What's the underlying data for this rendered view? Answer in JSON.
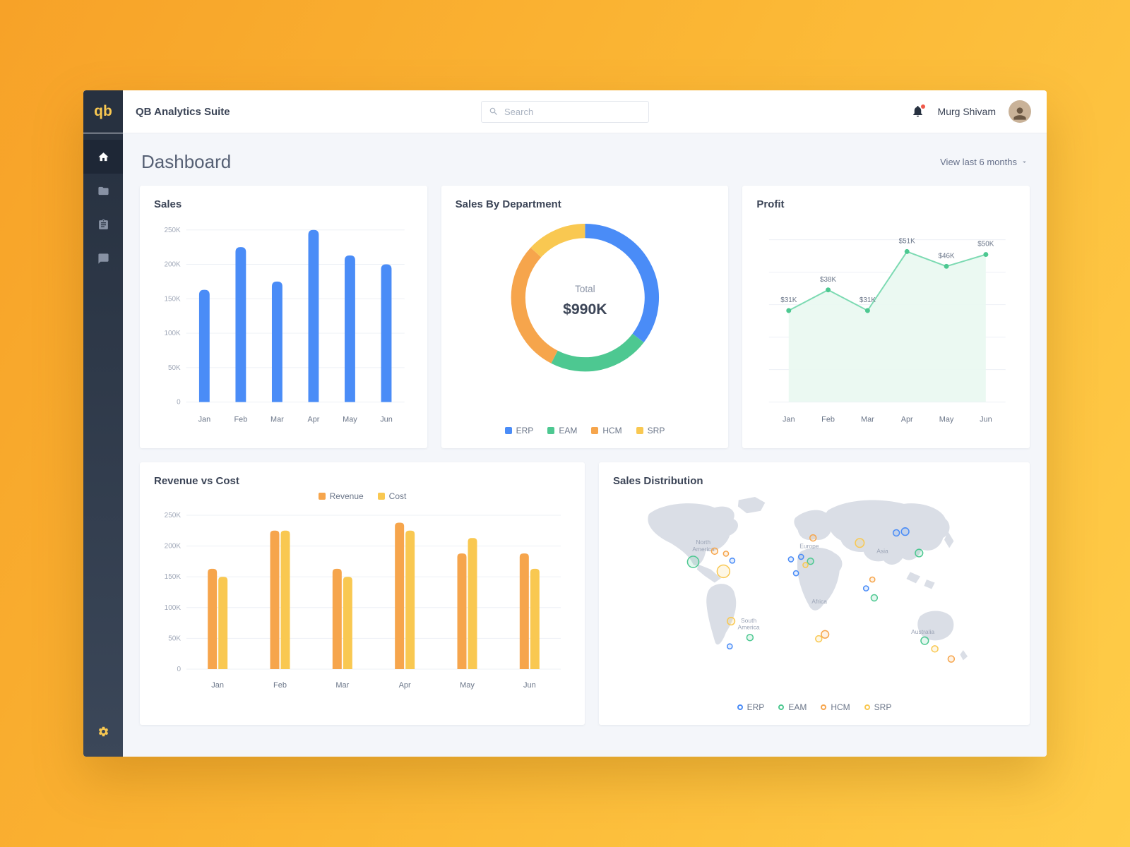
{
  "app": {
    "logo_text": "qb",
    "title": "QB Analytics Suite",
    "search_placeholder": "Search",
    "user_name": "Murg Shivam"
  },
  "page": {
    "title": "Dashboard",
    "range_filter": "View last 6 months"
  },
  "colors": {
    "blue": "#4A8CF7",
    "green": "#4DC891",
    "orange": "#F6A54C",
    "yellow": "#F9C851",
    "grid": "#EDF0F6"
  },
  "chart_data": [
    {
      "id": "sales",
      "type": "bar",
      "title": "Sales",
      "categories": [
        "Jan",
        "Feb",
        "Mar",
        "Apr",
        "May",
        "Jun"
      ],
      "values": [
        163000,
        225000,
        175000,
        250000,
        213000,
        200000
      ],
      "ylim": [
        0,
        250000
      ],
      "yticks": [
        "0",
        "50K",
        "100K",
        "150K",
        "200K",
        "250K"
      ],
      "bar_color": "#4A8CF7"
    },
    {
      "id": "sales-by-department",
      "type": "pie",
      "title": "Sales By Department",
      "center_label": "Total",
      "center_value": "$990K",
      "unit": "$K",
      "slices": [
        {
          "name": "ERP",
          "value": 350,
          "color": "#4A8CF7"
        },
        {
          "name": "EAM",
          "value": 220,
          "color": "#4DC891"
        },
        {
          "name": "HCM",
          "value": 290,
          "color": "#F6A54C"
        },
        {
          "name": "SRP",
          "value": 130,
          "color": "#F9C851"
        }
      ]
    },
    {
      "id": "profit",
      "type": "line",
      "title": "Profit",
      "categories": [
        "Jan",
        "Feb",
        "Mar",
        "Apr",
        "May",
        "Jun"
      ],
      "values": [
        31000,
        38000,
        31000,
        51000,
        46000,
        50000
      ],
      "point_labels": [
        "$31K",
        "$38K",
        "$31K",
        "$51K",
        "$46K",
        "$50K"
      ],
      "ylim": [
        0,
        55000
      ],
      "line_color": "#7CDAB2",
      "area_color": "#E9F8F1",
      "point_color": "#4DC891"
    },
    {
      "id": "revenue-vs-cost",
      "type": "bar",
      "title": "Revenue vs Cost",
      "categories": [
        "Jan",
        "Feb",
        "Mar",
        "Apr",
        "May",
        "Jun"
      ],
      "series": [
        {
          "name": "Revenue",
          "color": "#F6A54C",
          "values": [
            163000,
            225000,
            163000,
            238000,
            188000,
            188000
          ]
        },
        {
          "name": "Cost",
          "color": "#F9C851",
          "values": [
            150000,
            225000,
            150000,
            225000,
            213000,
            163000
          ]
        }
      ],
      "ylim": [
        0,
        250000
      ],
      "yticks": [
        "0",
        "50K",
        "100K",
        "150K",
        "200K",
        "250K"
      ]
    },
    {
      "id": "sales-distribution",
      "type": "map",
      "title": "Sales Distribution",
      "legend": [
        {
          "name": "ERP",
          "color": "#4A8CF7"
        },
        {
          "name": "EAM",
          "color": "#4DC891"
        },
        {
          "name": "HCM",
          "color": "#F6A54C"
        },
        {
          "name": "SRP",
          "color": "#F9C851"
        }
      ],
      "region_labels": [
        {
          "lines": [
            "North",
            "America"
          ],
          "x": 104,
          "y": 84
        },
        {
          "lines": [
            "South",
            "America"
          ],
          "x": 176,
          "y": 208
        },
        {
          "lines": [
            "Europe"
          ],
          "x": 272,
          "y": 90
        },
        {
          "lines": [
            "Africa"
          ],
          "x": 288,
          "y": 178
        },
        {
          "lines": [
            "Asia"
          ],
          "x": 388,
          "y": 98
        },
        {
          "lines": [
            "Australia"
          ],
          "x": 452,
          "y": 226
        }
      ],
      "markers": [
        {
          "x": 88,
          "y": 112,
          "r": 9,
          "c": "green"
        },
        {
          "x": 122,
          "y": 95,
          "r": 5,
          "c": "orange"
        },
        {
          "x": 140,
          "y": 99,
          "r": 4,
          "c": "orange"
        },
        {
          "x": 136,
          "y": 127,
          "r": 10,
          "c": "yellow"
        },
        {
          "x": 150,
          "y": 110,
          "r": 4,
          "c": "blue"
        },
        {
          "x": 148,
          "y": 206,
          "r": 6,
          "c": "yellow"
        },
        {
          "x": 178,
          "y": 232,
          "r": 5,
          "c": "green"
        },
        {
          "x": 146,
          "y": 246,
          "r": 4,
          "c": "blue"
        },
        {
          "x": 278,
          "y": 74,
          "r": 5,
          "c": "orange"
        },
        {
          "x": 243,
          "y": 108,
          "r": 4,
          "c": "blue"
        },
        {
          "x": 259,
          "y": 104,
          "r": 4,
          "c": "blue"
        },
        {
          "x": 274,
          "y": 111,
          "r": 5,
          "c": "green"
        },
        {
          "x": 251,
          "y": 130,
          "r": 4,
          "c": "blue"
        },
        {
          "x": 266,
          "y": 117,
          "r": 4,
          "c": "yellow"
        },
        {
          "x": 352,
          "y": 82,
          "r": 7,
          "c": "yellow"
        },
        {
          "x": 410,
          "y": 66,
          "r": 5,
          "c": "blue"
        },
        {
          "x": 424,
          "y": 64,
          "r": 6,
          "c": "blue"
        },
        {
          "x": 446,
          "y": 98,
          "r": 6,
          "c": "green"
        },
        {
          "x": 372,
          "y": 140,
          "r": 4,
          "c": "orange"
        },
        {
          "x": 362,
          "y": 154,
          "r": 4,
          "c": "blue"
        },
        {
          "x": 375,
          "y": 169,
          "r": 5,
          "c": "green"
        },
        {
          "x": 297,
          "y": 227,
          "r": 6,
          "c": "orange"
        },
        {
          "x": 287,
          "y": 234,
          "r": 5,
          "c": "yellow"
        },
        {
          "x": 455,
          "y": 237,
          "r": 6,
          "c": "green"
        },
        {
          "x": 471,
          "y": 250,
          "r": 5,
          "c": "yellow"
        },
        {
          "x": 497,
          "y": 266,
          "r": 5,
          "c": "orange"
        }
      ]
    }
  ]
}
